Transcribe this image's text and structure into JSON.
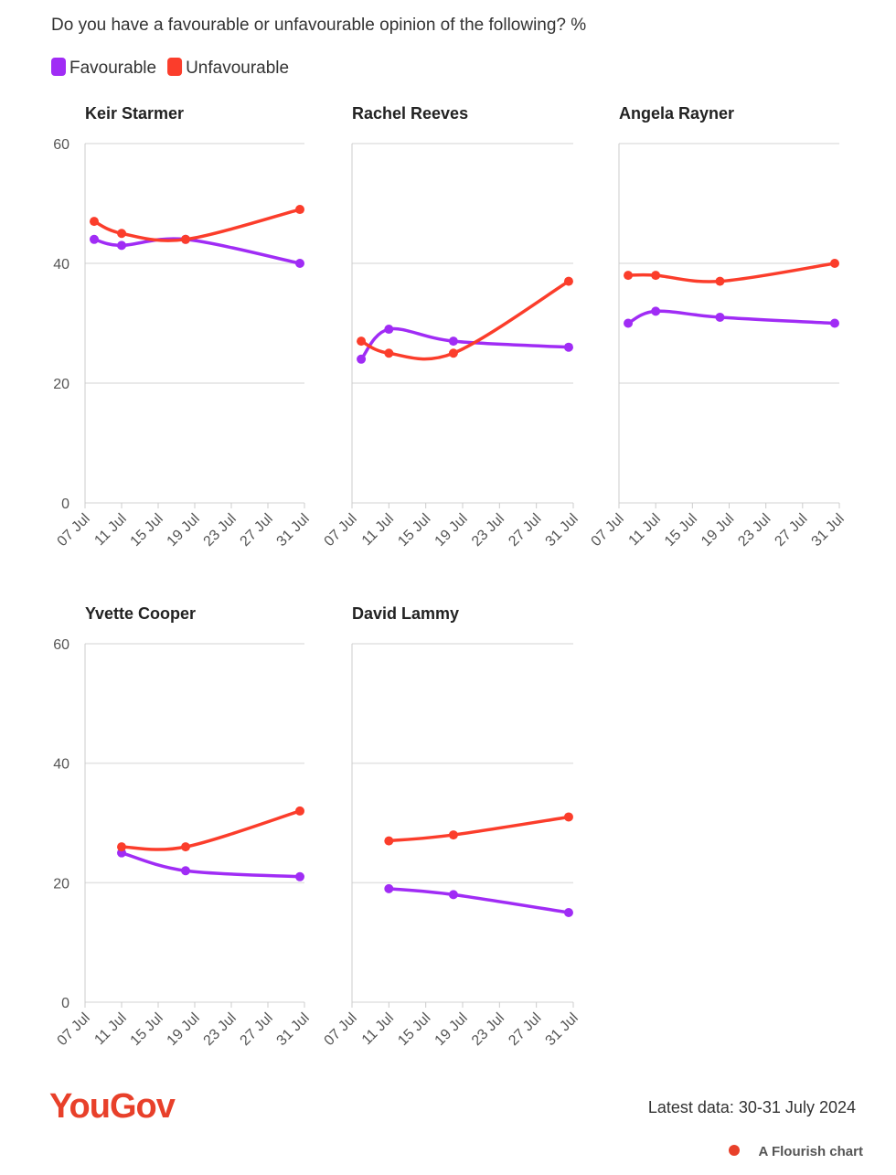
{
  "title": "Do you have a favourable or unfavourable opinion of the following? %",
  "chart_data": [
    {
      "type": "line",
      "title": "Keir Starmer",
      "x": [
        8,
        11,
        18,
        30.5
      ],
      "xlim": [
        7,
        31
      ],
      "xticks": [
        {
          "value": 7,
          "label": "07 Jul"
        },
        {
          "value": 11,
          "label": "11 Jul"
        },
        {
          "value": 15,
          "label": "15 Jul"
        },
        {
          "value": 19,
          "label": "19 Jul"
        },
        {
          "value": 23,
          "label": "23 Jul"
        },
        {
          "value": 27,
          "label": "27 Jul"
        },
        {
          "value": 31,
          "label": "31 Jul"
        }
      ],
      "ylim": [
        0,
        60
      ],
      "yticks": [
        0,
        20,
        40,
        60
      ],
      "grid": true,
      "series": [
        {
          "name": "Favourable",
          "color": "#a02cf5",
          "values": [
            44,
            43,
            44,
            40
          ]
        },
        {
          "name": "Unfavourable",
          "color": "#fb3d2b",
          "values": [
            47,
            45,
            44,
            49
          ]
        }
      ]
    },
    {
      "type": "line",
      "title": "Rachel Reeves",
      "x": [
        8,
        11,
        18,
        30.5
      ],
      "xlim": [
        7,
        31
      ],
      "xticks": [
        {
          "value": 7,
          "label": "07 Jul"
        },
        {
          "value": 11,
          "label": "11 Jul"
        },
        {
          "value": 15,
          "label": "15 Jul"
        },
        {
          "value": 19,
          "label": "19 Jul"
        },
        {
          "value": 23,
          "label": "23 Jul"
        },
        {
          "value": 27,
          "label": "27 Jul"
        },
        {
          "value": 31,
          "label": "31 Jul"
        }
      ],
      "ylim": [
        0,
        60
      ],
      "yticks": [
        0,
        20,
        40,
        60
      ],
      "grid": true,
      "series": [
        {
          "name": "Favourable",
          "color": "#a02cf5",
          "values": [
            24,
            29,
            27,
            26
          ]
        },
        {
          "name": "Unfavourable",
          "color": "#fb3d2b",
          "values": [
            27,
            25,
            25,
            37
          ]
        }
      ]
    },
    {
      "type": "line",
      "title": "Angela Rayner",
      "x": [
        8,
        11,
        18,
        30.5
      ],
      "xlim": [
        7,
        31
      ],
      "xticks": [
        {
          "value": 7,
          "label": "07 Jul"
        },
        {
          "value": 11,
          "label": "11 Jul"
        },
        {
          "value": 15,
          "label": "15 Jul"
        },
        {
          "value": 19,
          "label": "19 Jul"
        },
        {
          "value": 23,
          "label": "23 Jul"
        },
        {
          "value": 27,
          "label": "27 Jul"
        },
        {
          "value": 31,
          "label": "31 Jul"
        }
      ],
      "ylim": [
        0,
        60
      ],
      "yticks": [
        0,
        20,
        40,
        60
      ],
      "grid": true,
      "series": [
        {
          "name": "Favourable",
          "color": "#a02cf5",
          "values": [
            30,
            32,
            31,
            30
          ]
        },
        {
          "name": "Unfavourable",
          "color": "#fb3d2b",
          "values": [
            38,
            38,
            37,
            40
          ]
        }
      ]
    },
    {
      "type": "line",
      "title": "Yvette Cooper",
      "x": [
        11,
        18,
        30.5
      ],
      "xlim": [
        7,
        31
      ],
      "xticks": [
        {
          "value": 7,
          "label": "07 Jul"
        },
        {
          "value": 11,
          "label": "11 Jul"
        },
        {
          "value": 15,
          "label": "15 Jul"
        },
        {
          "value": 19,
          "label": "19 Jul"
        },
        {
          "value": 23,
          "label": "23 Jul"
        },
        {
          "value": 27,
          "label": "27 Jul"
        },
        {
          "value": 31,
          "label": "31 Jul"
        }
      ],
      "ylim": [
        0,
        60
      ],
      "yticks": [
        0,
        20,
        40,
        60
      ],
      "grid": true,
      "series": [
        {
          "name": "Favourable",
          "color": "#a02cf5",
          "values": [
            25,
            22,
            21
          ]
        },
        {
          "name": "Unfavourable",
          "color": "#fb3d2b",
          "values": [
            26,
            26,
            32
          ]
        }
      ]
    },
    {
      "type": "line",
      "title": "David Lammy",
      "x": [
        11,
        18,
        30.5
      ],
      "xlim": [
        7,
        31
      ],
      "xticks": [
        {
          "value": 7,
          "label": "07 Jul"
        },
        {
          "value": 11,
          "label": "11 Jul"
        },
        {
          "value": 15,
          "label": "15 Jul"
        },
        {
          "value": 19,
          "label": "19 Jul"
        },
        {
          "value": 23,
          "label": "23 Jul"
        },
        {
          "value": 27,
          "label": "27 Jul"
        },
        {
          "value": 31,
          "label": "31 Jul"
        }
      ],
      "ylim": [
        0,
        60
      ],
      "yticks": [
        0,
        20,
        40,
        60
      ],
      "grid": true,
      "series": [
        {
          "name": "Favourable",
          "color": "#a02cf5",
          "values": [
            19,
            18,
            15
          ]
        },
        {
          "name": "Unfavourable",
          "color": "#fb3d2b",
          "values": [
            27,
            28,
            31
          ]
        }
      ]
    }
  ],
  "footer": {
    "logo": "YouGov",
    "note": "Latest data: 30-31 July 2024",
    "credit": "A Flourish chart"
  }
}
